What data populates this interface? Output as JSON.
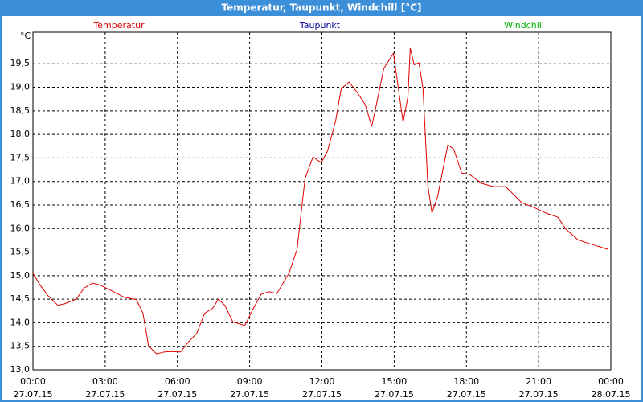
{
  "chart_data": {
    "type": "line",
    "title": "Temperatur, Taupunkt, Windchill [°C]",
    "y_label": "°C",
    "x": [
      0,
      0.3,
      0.63,
      1.03,
      1.3,
      1.8,
      2.13,
      2.47,
      2.8,
      3.3,
      3.8,
      4.3,
      4.57,
      4.8,
      5.13,
      5.47,
      5.7,
      6.13,
      6.47,
      6.8,
      7.13,
      7.47,
      7.7,
      7.97,
      8.3,
      8.8,
      9.13,
      9.47,
      9.8,
      10.13,
      10.63,
      10.97,
      11.3,
      11.63,
      11.97,
      12.23,
      12.57,
      12.8,
      13.13,
      13.47,
      13.8,
      14.07,
      14.3,
      14.57,
      14.97,
      15.13,
      15.37,
      15.57,
      15.67,
      15.83,
      16.03,
      16.2,
      16.4,
      16.57,
      16.8,
      17.23,
      17.47,
      17.8,
      18.13,
      18.63,
      19.13,
      19.63,
      20.3,
      20.8,
      21.3,
      21.8,
      22.13,
      22.63,
      23.3,
      23.87
    ],
    "series": [
      {
        "name": "Temperatur",
        "color": "#e00000",
        "values": [
          15.05,
          14.8,
          14.57,
          14.37,
          14.4,
          14.5,
          14.74,
          14.84,
          14.8,
          14.67,
          14.54,
          14.49,
          14.2,
          13.51,
          13.34,
          13.38,
          13.39,
          13.38,
          13.6,
          13.77,
          14.2,
          14.31,
          14.5,
          14.37,
          14.02,
          13.94,
          14.28,
          14.6,
          14.66,
          14.62,
          15.05,
          15.56,
          17.06,
          17.52,
          17.4,
          17.64,
          18.29,
          18.97,
          19.11,
          18.89,
          18.63,
          18.17,
          18.72,
          19.4,
          19.72,
          19.14,
          18.26,
          18.8,
          19.83,
          19.48,
          19.52,
          18.97,
          16.92,
          16.33,
          16.67,
          17.78,
          17.69,
          17.18,
          17.15,
          16.96,
          16.89,
          16.89,
          16.55,
          16.45,
          16.33,
          16.24,
          15.99,
          15.76,
          15.65,
          15.56
        ]
      },
      {
        "name": "Taupunkt",
        "color": "#000099",
        "values": [
          null,
          null,
          null,
          null,
          null,
          null,
          null,
          null,
          null,
          null,
          null,
          null,
          null,
          null,
          null,
          null,
          null,
          null,
          null,
          null,
          null,
          null,
          null,
          null,
          null,
          null,
          null,
          null,
          null,
          null,
          null,
          null,
          null,
          null,
          null,
          null,
          null,
          null,
          null,
          null,
          null,
          null,
          null,
          null,
          null,
          null,
          null,
          null,
          null,
          null,
          null,
          null,
          null,
          null,
          null,
          null,
          null,
          null,
          null,
          null,
          null,
          null,
          null,
          null,
          null,
          null,
          null,
          null,
          null,
          null
        ]
      },
      {
        "name": "Windchill",
        "color": "#00b000",
        "values": [
          null,
          null,
          null,
          null,
          null,
          null,
          null,
          null,
          null,
          null,
          null,
          null,
          null,
          null,
          null,
          null,
          null,
          null,
          null,
          null,
          null,
          null,
          null,
          null,
          null,
          null,
          null,
          null,
          null,
          null,
          null,
          null,
          null,
          null,
          null,
          null,
          null,
          null,
          null,
          null,
          null,
          null,
          null,
          null,
          null,
          null,
          null,
          null,
          null,
          null,
          null,
          null,
          null,
          null,
          null,
          null,
          null,
          null,
          null,
          null,
          null,
          null,
          null,
          null,
          null,
          null,
          null,
          null,
          null,
          null
        ]
      }
    ],
    "xlim": [
      0,
      24
    ],
    "xticks": [
      {
        "value": 0,
        "label": "00:00",
        "date": "27.07.15"
      },
      {
        "value": 3,
        "label": "03:00",
        "date": "27.07.15"
      },
      {
        "value": 6,
        "label": "06:00",
        "date": "27.07.15"
      },
      {
        "value": 9,
        "label": "09:00",
        "date": "27.07.15"
      },
      {
        "value": 12,
        "label": "12:00",
        "date": "27.07.15"
      },
      {
        "value": 15,
        "label": "15:00",
        "date": "27.07.15"
      },
      {
        "value": 18,
        "label": "18:00",
        "date": "27.07.15"
      },
      {
        "value": 21,
        "label": "21:00",
        "date": "27.07.15"
      },
      {
        "value": 24,
        "label": "00:00",
        "date": "28.07.15"
      }
    ],
    "ylim": [
      13,
      20.17
    ],
    "yticks": [
      {
        "value": 13,
        "label": "13,0"
      },
      {
        "value": 13.5,
        "label": "13,5"
      },
      {
        "value": 14,
        "label": "14,0"
      },
      {
        "value": 14.5,
        "label": "14,5"
      },
      {
        "value": 15,
        "label": "15,0"
      },
      {
        "value": 15.5,
        "label": "15,5"
      },
      {
        "value": 16,
        "label": "16,0"
      },
      {
        "value": 16.5,
        "label": "16,5"
      },
      {
        "value": 17,
        "label": "17,0"
      },
      {
        "value": 17.5,
        "label": "17,5"
      },
      {
        "value": 18,
        "label": "18,0"
      },
      {
        "value": 18.5,
        "label": "18,5"
      },
      {
        "value": 19,
        "label": "19,0"
      },
      {
        "value": 19.5,
        "label": "19,5"
      }
    ],
    "grid": true
  }
}
